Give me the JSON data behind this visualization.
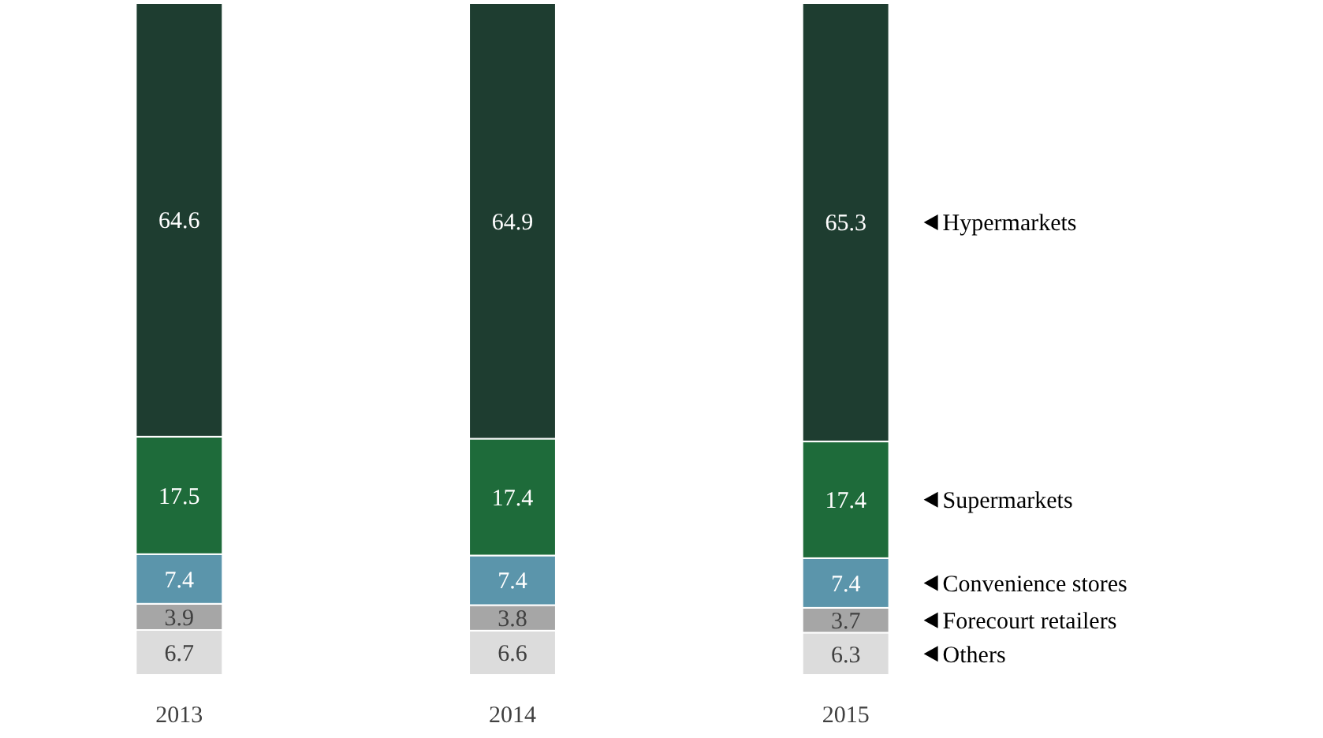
{
  "chart_data": {
    "type": "bar",
    "stacked": true,
    "data_labels": true,
    "legend": "right",
    "categories": [
      "2013",
      "2014",
      "2015"
    ],
    "series": [
      {
        "name": "Others",
        "color": "#dcdcdc",
        "values": [
          6.7,
          6.6,
          6.3
        ]
      },
      {
        "name": "Forecourt retailers",
        "color": "#a6a6a6",
        "values": [
          3.9,
          3.8,
          3.7
        ]
      },
      {
        "name": "Convenience stores",
        "color": "#5b95ab",
        "values": [
          7.4,
          7.4,
          7.4
        ]
      },
      {
        "name": "Supermarkets",
        "color": "#1e6b3a",
        "values": [
          17.5,
          17.4,
          17.4
        ]
      },
      {
        "name": "Hypermarkets",
        "color": "#1e3d30",
        "values": [
          64.6,
          64.9,
          65.3
        ]
      }
    ]
  }
}
